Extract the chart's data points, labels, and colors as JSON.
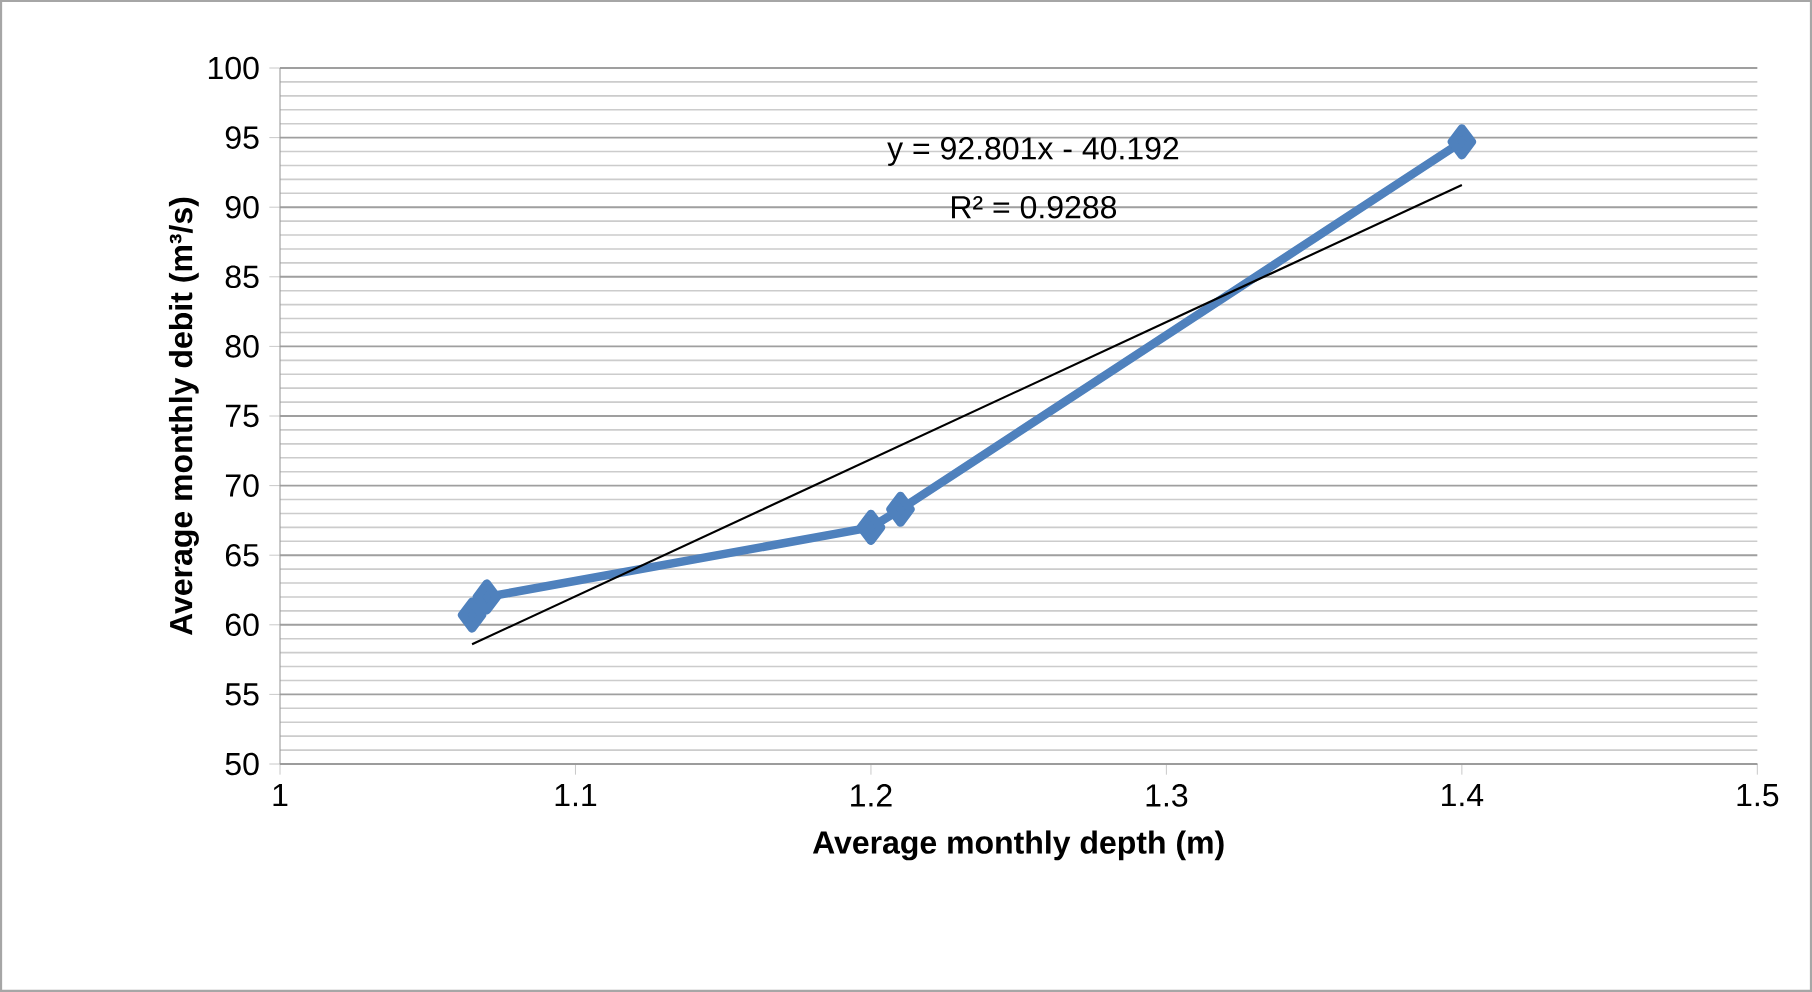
{
  "chart_data": {
    "type": "line",
    "xlabel": "Average monthly depth (m)",
    "ylabel": "Average monthly  debit  (m³/s)",
    "x": [
      1.065,
      1.07,
      1.2,
      1.21,
      1.4
    ],
    "series": [
      {
        "color": "#4f81bd",
        "values": [
          60.7,
          62,
          67,
          68.3,
          94.7
        ],
        "marker": "diamond"
      },
      {
        "type": "line",
        "color": "#000000",
        "x": [
          1.065,
          1.4
        ],
        "values": [
          58.6,
          91.6
        ],
        "marker": "none"
      }
    ],
    "annotations": [
      "y = 92.801x - 40.192",
      "R² = 0.9288"
    ],
    "xlim": [
      1,
      1.5
    ],
    "xticks": [
      1,
      1.1,
      1.2,
      1.3,
      1.4,
      1.5
    ],
    "ylim": [
      50,
      100
    ],
    "yticks": [
      50,
      55,
      60,
      65,
      70,
      75,
      80,
      85,
      90,
      95,
      100
    ],
    "grid": "y"
  }
}
